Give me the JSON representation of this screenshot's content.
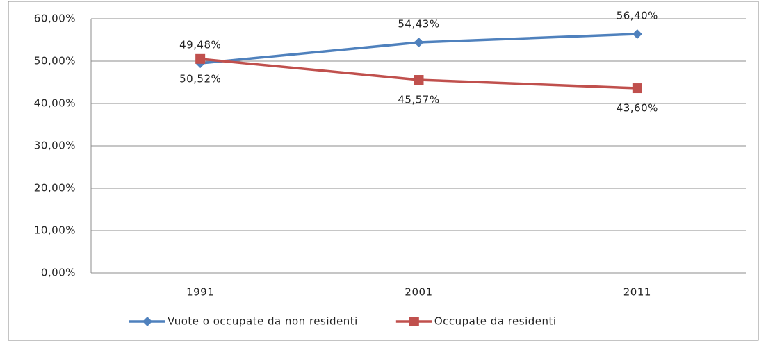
{
  "chart_data": {
    "type": "line",
    "categories": [
      "1991",
      "2001",
      "2011"
    ],
    "series": [
      {
        "name": "Vuote o occupate da non residenti",
        "color": "#4f81bd",
        "marker": "diamond",
        "values": [
          49.48,
          54.43,
          56.4
        ],
        "value_labels": [
          "49,48%",
          "54,43%",
          "56,40%"
        ]
      },
      {
        "name": "Occupate da residenti",
        "color": "#c0504d",
        "marker": "square",
        "values": [
          50.52,
          45.57,
          43.6
        ],
        "value_labels": [
          "50,52%",
          "45,57%",
          "43,60%"
        ]
      }
    ],
    "ylim": [
      0,
      60
    ],
    "yticks": [
      {
        "value": 0,
        "label": "0,00%"
      },
      {
        "value": 10,
        "label": "10,00%"
      },
      {
        "value": 20,
        "label": "20,00%"
      },
      {
        "value": 30,
        "label": "30,00%"
      },
      {
        "value": 40,
        "label": "40,00%"
      },
      {
        "value": 50,
        "label": "50,00%"
      },
      {
        "value": 60,
        "label": "60,00%"
      }
    ],
    "grid": true,
    "legend": "bottom"
  }
}
